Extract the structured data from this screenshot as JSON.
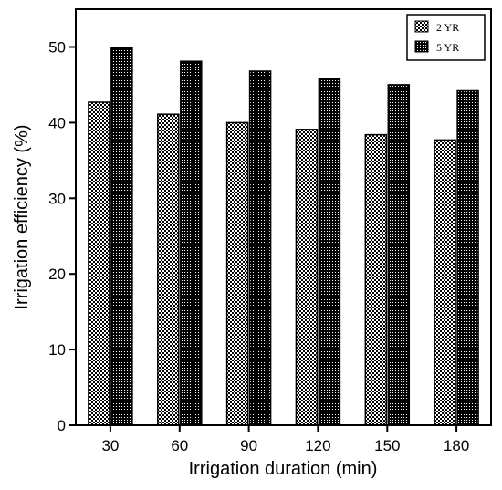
{
  "chart_data": {
    "type": "bar",
    "categories": [
      "30",
      "60",
      "90",
      "120",
      "150",
      "180"
    ],
    "series": [
      {
        "name": "2 YR",
        "values": [
          42.7,
          41.1,
          40.0,
          39.1,
          38.4,
          37.7
        ],
        "pattern": "checkerboard"
      },
      {
        "name": "5 YR",
        "values": [
          49.9,
          48.1,
          46.8,
          45.8,
          45.0,
          44.2
        ],
        "pattern": "dense-grid"
      }
    ],
    "title": "",
    "xlabel": "Irrigation duration (min)",
    "ylabel": "Irrigation efficiency (%)",
    "ylim": [
      0,
      55
    ],
    "yticks": [
      0,
      10,
      20,
      30,
      40,
      50
    ],
    "grid": false,
    "legend_position": "top-right",
    "colors": {
      "bar_fill_dark": "#000000",
      "bar_fill_light": "#ffffff",
      "axis": "#000000"
    }
  }
}
